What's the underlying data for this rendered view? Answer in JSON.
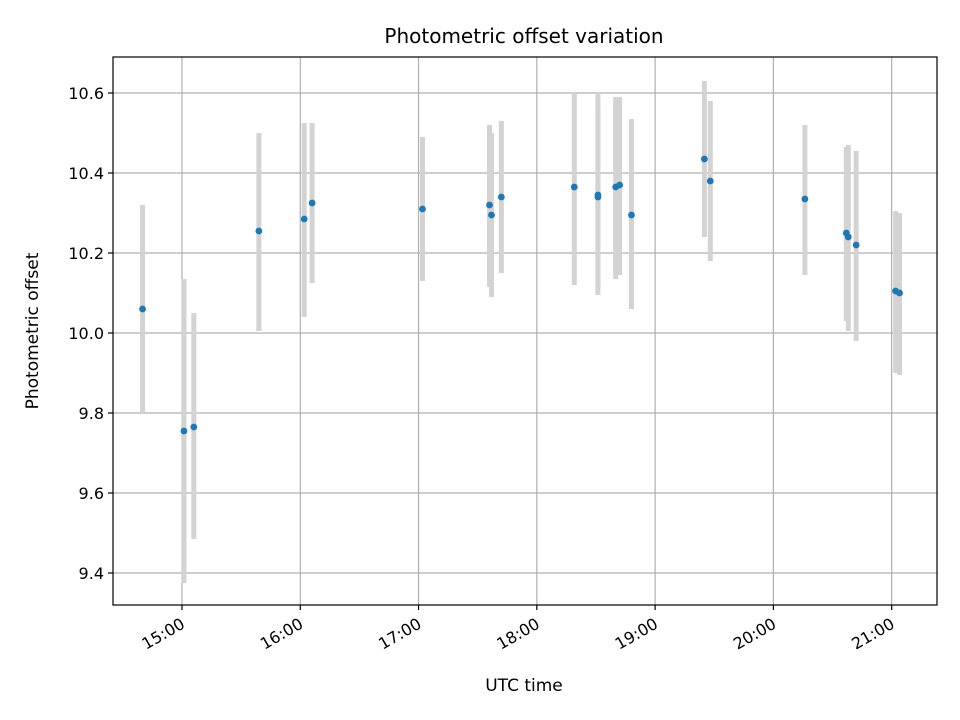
{
  "chart_data": {
    "type": "scatter",
    "title": "Photometric offset variation",
    "xlabel": "UTC time",
    "ylabel": "Photometric offset",
    "xlim": [
      "14:25",
      "21:23"
    ],
    "ylim": [
      9.32,
      10.69
    ],
    "x_ticks": [
      "15:00",
      "16:00",
      "17:00",
      "18:00",
      "19:00",
      "20:00",
      "21:00"
    ],
    "y_ticks": [
      "9.4",
      "9.6",
      "9.8",
      "10.0",
      "10.2",
      "10.4",
      "10.6"
    ],
    "grid": true,
    "marker_color": "#1f77b4",
    "errorbar_color": "#d3d3d3",
    "points": [
      {
        "x": "14:40",
        "y": 10.06,
        "low": 9.8,
        "high": 10.32
      },
      {
        "x": "15:01",
        "y": 9.755,
        "low": 9.375,
        "high": 10.135
      },
      {
        "x": "15:06",
        "y": 9.765,
        "low": 9.485,
        "high": 10.05
      },
      {
        "x": "15:39",
        "y": 10.255,
        "low": 10.005,
        "high": 10.5
      },
      {
        "x": "16:02",
        "y": 10.285,
        "low": 10.04,
        "high": 10.525
      },
      {
        "x": "16:06",
        "y": 10.325,
        "low": 10.125,
        "high": 10.525
      },
      {
        "x": "17:02",
        "y": 10.31,
        "low": 10.13,
        "high": 10.49
      },
      {
        "x": "17:36",
        "y": 10.32,
        "low": 10.115,
        "high": 10.52
      },
      {
        "x": "17:37",
        "y": 10.295,
        "low": 10.09,
        "high": 10.5
      },
      {
        "x": "17:42",
        "y": 10.34,
        "low": 10.15,
        "high": 10.53
      },
      {
        "x": "18:19",
        "y": 10.365,
        "low": 10.12,
        "high": 10.6
      },
      {
        "x": "18:31",
        "y": 10.34,
        "low": 10.115,
        "high": 10.565
      },
      {
        "x": "18:31",
        "y": 10.345,
        "low": 10.095,
        "high": 10.6
      },
      {
        "x": "18:40",
        "y": 10.365,
        "low": 10.135,
        "high": 10.59
      },
      {
        "x": "18:42",
        "y": 10.37,
        "low": 10.145,
        "high": 10.59
      },
      {
        "x": "18:48",
        "y": 10.295,
        "low": 10.06,
        "high": 10.535
      },
      {
        "x": "19:25",
        "y": 10.435,
        "low": 10.24,
        "high": 10.63
      },
      {
        "x": "19:28",
        "y": 10.38,
        "low": 10.18,
        "high": 10.58
      },
      {
        "x": "20:16",
        "y": 10.335,
        "low": 10.145,
        "high": 10.52
      },
      {
        "x": "20:37",
        "y": 10.25,
        "low": 10.03,
        "high": 10.465
      },
      {
        "x": "20:38",
        "y": 10.24,
        "low": 10.005,
        "high": 10.47
      },
      {
        "x": "20:42",
        "y": 10.22,
        "low": 9.98,
        "high": 10.455
      },
      {
        "x": "21:02",
        "y": 10.105,
        "low": 9.9,
        "high": 10.305
      },
      {
        "x": "21:04",
        "y": 10.1,
        "low": 9.895,
        "high": 10.3
      }
    ]
  }
}
